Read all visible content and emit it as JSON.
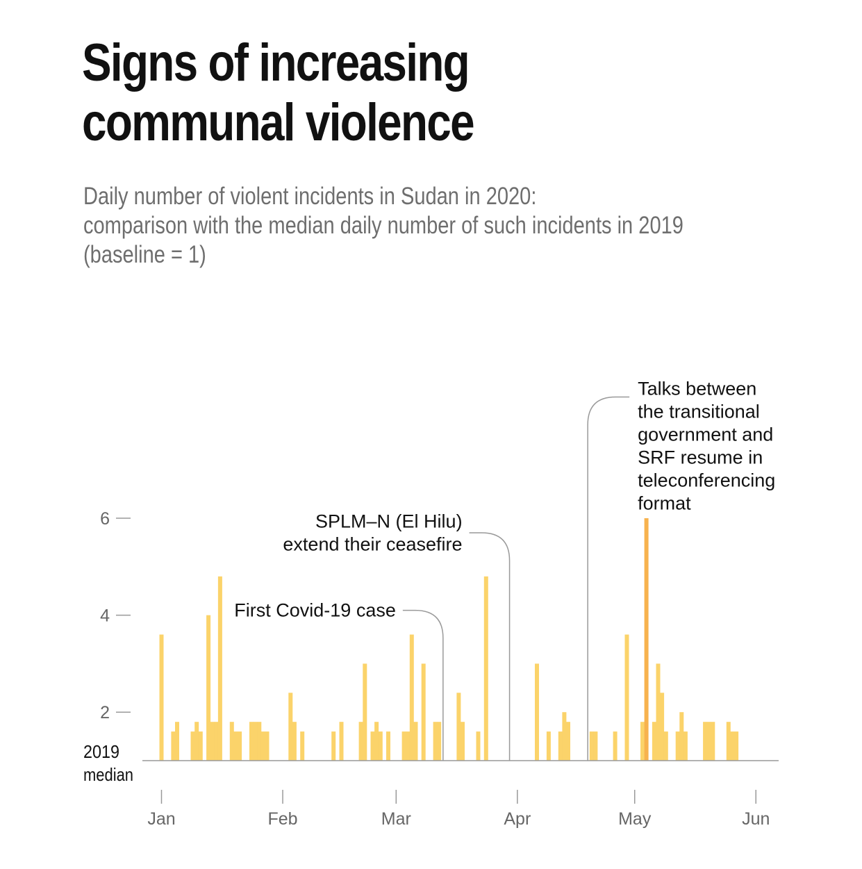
{
  "header": {
    "title_lines": [
      "Signs of increasing",
      "communal violence"
    ],
    "subtitle_lines": [
      "Daily number of violent incidents in Sudan in 2020:",
      "comparison with the median daily number of such incidents in 2019",
      "(baseline = 1)"
    ]
  },
  "colors": {
    "bar": "#fbd36a",
    "bar_highlight": "#f7b24e",
    "axis": "#999999",
    "text": "#111111",
    "tick_text": "#666666",
    "subtitle": "#6e6e6e"
  },
  "chart_data": {
    "type": "bar",
    "title": "Signs of increasing communal violence",
    "subtitle": "Daily number of violent incidents in Sudan in 2020: comparison with the median daily number of such incidents in 2019 (baseline = 1)",
    "baseline": 1,
    "baseline_label_lines": [
      "2019",
      "median"
    ],
    "ylim": [
      1,
      6
    ],
    "yticks": [
      2,
      4,
      6
    ],
    "x_range": [
      "2020-01-01",
      "2020-06-01"
    ],
    "xticks": [
      {
        "date": "2020-01-01",
        "label": "Jan"
      },
      {
        "date": "2020-02-01",
        "label": "Feb"
      },
      {
        "date": "2020-03-01",
        "label": "Mar"
      },
      {
        "date": "2020-04-01",
        "label": "Apr"
      },
      {
        "date": "2020-05-01",
        "label": "May"
      },
      {
        "date": "2020-06-01",
        "label": "Jun"
      }
    ],
    "points": [
      {
        "date": "2020-01-01",
        "value": 3.6
      },
      {
        "date": "2020-01-04",
        "value": 1.6
      },
      {
        "date": "2020-01-05",
        "value": 1.8
      },
      {
        "date": "2020-01-09",
        "value": 1.6
      },
      {
        "date": "2020-01-10",
        "value": 1.8
      },
      {
        "date": "2020-01-11",
        "value": 1.6
      },
      {
        "date": "2020-01-13",
        "value": 4.0
      },
      {
        "date": "2020-01-14",
        "value": 1.8
      },
      {
        "date": "2020-01-15",
        "value": 1.8
      },
      {
        "date": "2020-01-16",
        "value": 4.8
      },
      {
        "date": "2020-01-19",
        "value": 1.8
      },
      {
        "date": "2020-01-20",
        "value": 1.6
      },
      {
        "date": "2020-01-21",
        "value": 1.6
      },
      {
        "date": "2020-01-24",
        "value": 1.8
      },
      {
        "date": "2020-01-25",
        "value": 1.8
      },
      {
        "date": "2020-01-26",
        "value": 1.8
      },
      {
        "date": "2020-01-27",
        "value": 1.6
      },
      {
        "date": "2020-01-28",
        "value": 1.6
      },
      {
        "date": "2020-02-03",
        "value": 2.4
      },
      {
        "date": "2020-02-04",
        "value": 1.8
      },
      {
        "date": "2020-02-06",
        "value": 1.6
      },
      {
        "date": "2020-02-14",
        "value": 1.6
      },
      {
        "date": "2020-02-16",
        "value": 1.8
      },
      {
        "date": "2020-02-21",
        "value": 1.8
      },
      {
        "date": "2020-02-22",
        "value": 3.0
      },
      {
        "date": "2020-02-24",
        "value": 1.6
      },
      {
        "date": "2020-02-25",
        "value": 1.8
      },
      {
        "date": "2020-02-26",
        "value": 1.6
      },
      {
        "date": "2020-02-28",
        "value": 1.6
      },
      {
        "date": "2020-03-03",
        "value": 1.6
      },
      {
        "date": "2020-03-04",
        "value": 1.6
      },
      {
        "date": "2020-03-05",
        "value": 3.6
      },
      {
        "date": "2020-03-06",
        "value": 1.8
      },
      {
        "date": "2020-03-08",
        "value": 3.0
      },
      {
        "date": "2020-03-11",
        "value": 1.8
      },
      {
        "date": "2020-03-12",
        "value": 1.8
      },
      {
        "date": "2020-03-17",
        "value": 2.4
      },
      {
        "date": "2020-03-18",
        "value": 1.8
      },
      {
        "date": "2020-03-22",
        "value": 1.6
      },
      {
        "date": "2020-03-24",
        "value": 4.8
      },
      {
        "date": "2020-04-06",
        "value": 3.0
      },
      {
        "date": "2020-04-09",
        "value": 1.6
      },
      {
        "date": "2020-04-12",
        "value": 1.6
      },
      {
        "date": "2020-04-13",
        "value": 2.0
      },
      {
        "date": "2020-04-14",
        "value": 1.8
      },
      {
        "date": "2020-04-20",
        "value": 1.6
      },
      {
        "date": "2020-04-21",
        "value": 1.6
      },
      {
        "date": "2020-04-26",
        "value": 1.6
      },
      {
        "date": "2020-04-29",
        "value": 3.6
      },
      {
        "date": "2020-05-03",
        "value": 1.8
      },
      {
        "date": "2020-05-04",
        "value": 6.0,
        "highlight": true
      },
      {
        "date": "2020-05-06",
        "value": 1.8
      },
      {
        "date": "2020-05-07",
        "value": 3.0
      },
      {
        "date": "2020-05-08",
        "value": 2.4
      },
      {
        "date": "2020-05-09",
        "value": 1.6
      },
      {
        "date": "2020-05-12",
        "value": 1.6
      },
      {
        "date": "2020-05-13",
        "value": 2.0
      },
      {
        "date": "2020-05-14",
        "value": 1.6
      },
      {
        "date": "2020-05-19",
        "value": 1.8
      },
      {
        "date": "2020-05-20",
        "value": 1.8
      },
      {
        "date": "2020-05-21",
        "value": 1.8
      },
      {
        "date": "2020-05-25",
        "value": 1.8
      },
      {
        "date": "2020-05-26",
        "value": 1.6
      },
      {
        "date": "2020-05-27",
        "value": 1.6
      }
    ],
    "annotations": [
      {
        "id": "covid",
        "date": "2020-03-13",
        "level": 4.1,
        "side": "left",
        "text_lines": [
          "First Covid-19 case"
        ]
      },
      {
        "id": "splm",
        "date": "2020-03-30",
        "level": 5.7,
        "side": "left",
        "text_lines": [
          "SPLM–N (El Hilu)",
          "extend their ceasefire"
        ]
      },
      {
        "id": "talks",
        "date": "2020-04-19",
        "level": 8.5,
        "side": "right",
        "text_lines": [
          "Talks between",
          "the transitional",
          "government and",
          "SRF resume in",
          "teleconferencing",
          "format"
        ]
      }
    ]
  }
}
